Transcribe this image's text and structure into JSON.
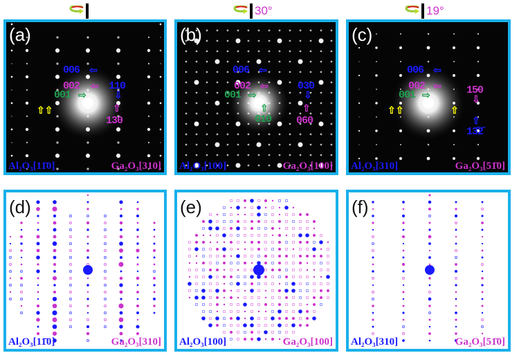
{
  "colors": {
    "border": "#1ab0ea",
    "al2o3": "#1a1aff",
    "ga2o3": "#cc33cc",
    "green": "#1e9e4e",
    "marker": "#ffff00"
  },
  "rotation": [
    {
      "icon": "rotation-arrow-icon",
      "angle": ""
    },
    {
      "icon": "rotation-arrow-icon",
      "angle": "30°"
    },
    {
      "icon": "rotation-arrow-icon",
      "angle": "19°"
    }
  ],
  "panels": {
    "a": {
      "tag": "(a)",
      "al": "Al₂O₃[11̄0]",
      "ga": "Ga₂O₃[310]",
      "spots": {
        "s006": "006",
        "s002": "002",
        "s001": "001",
        "s110": "110",
        "s130": "130"
      }
    },
    "b": {
      "tag": "(b)",
      "al": "Al₂O₃[100]",
      "ga": "Ga₂O₃[100]",
      "spots": {
        "s006": "006",
        "s002": "002",
        "s001": "001",
        "s030": "030",
        "s010": "010",
        "s060": "060"
      }
    },
    "c": {
      "tag": "(c)",
      "al": "Al₂O₃[310]",
      "ga": "Ga₂O₃[51̄0]",
      "spots": {
        "s006": "006",
        "s002": "002",
        "s001": "001",
        "s150": "150",
        "s132": "13̄2̄"
      }
    },
    "d": {
      "tag": "(d)",
      "al": "Al₂O₃[11̄0]",
      "ga": "Ga₂O₃[310]"
    },
    "e": {
      "tag": "(e)",
      "al": "Al₂O₃[100]",
      "ga": "Ga₂O₃[100]"
    },
    "f": {
      "tag": "(f)",
      "al": "Al₂O₃[310]",
      "ga": "Ga₂O₃[51̄0]"
    }
  }
}
